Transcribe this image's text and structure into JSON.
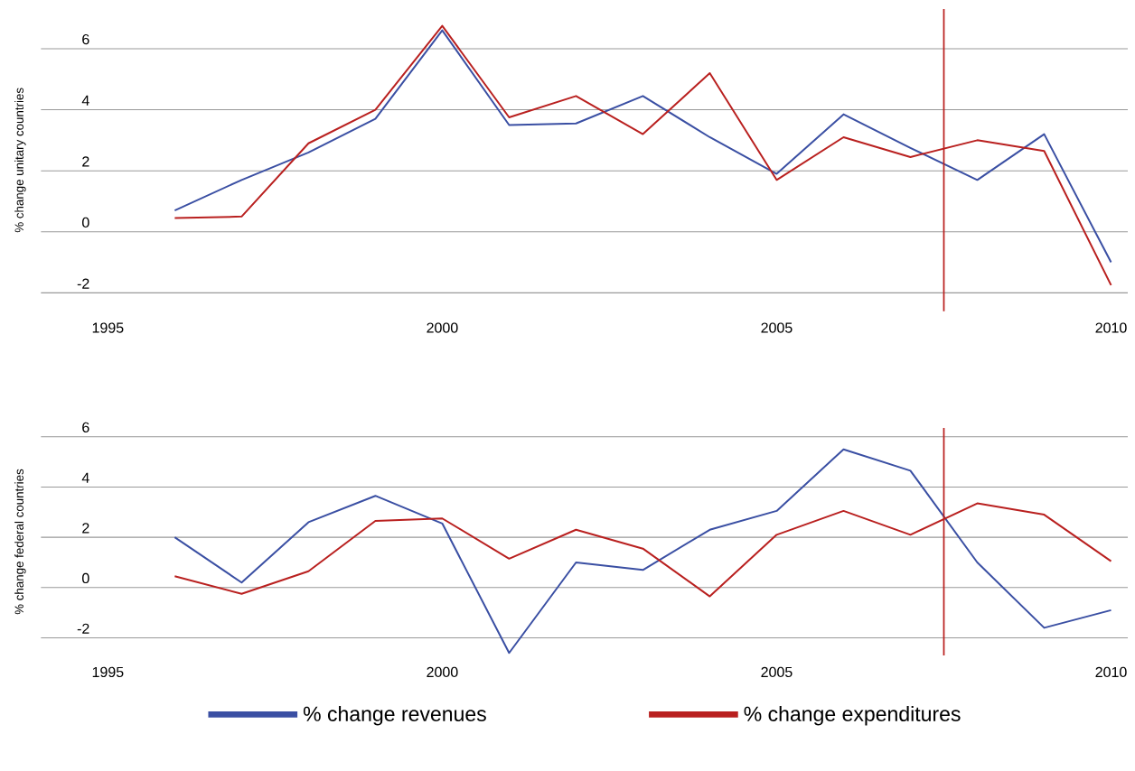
{
  "chart_data": [
    {
      "type": "line",
      "ylabel": "% change unitary countries",
      "x": [
        1996,
        1997,
        1998,
        1999,
        2000,
        2001,
        2002,
        2003,
        2004,
        2005,
        2006,
        2007,
        2008,
        2009,
        2010
      ],
      "series": [
        {
          "color": "#3a4fa3",
          "values": [
            0.7,
            1.7,
            2.6,
            3.7,
            6.6,
            3.5,
            3.55,
            4.45,
            3.1,
            1.9,
            3.85,
            2.75,
            1.7,
            3.2,
            -1.0
          ]
        },
        {
          "color": "#b9201f",
          "values": [
            0.45,
            0.5,
            2.9,
            4.0,
            6.75,
            3.75,
            4.45,
            3.2,
            5.2,
            1.7,
            3.1,
            2.45,
            3.0,
            2.65,
            -1.75
          ]
        }
      ],
      "xlim": [
        1994,
        2010.25
      ],
      "ylim": [
        -2.6,
        7.3
      ],
      "xticks": [
        1995,
        2000,
        2005,
        2010
      ],
      "yticks": [
        -2,
        0,
        2,
        4,
        6
      ],
      "grid": "y",
      "marker": "none",
      "line_style": "solid",
      "ref_lines": [
        {
          "axis": "x",
          "value": 2007.5,
          "color": "#b9201f"
        }
      ]
    },
    {
      "type": "line",
      "ylabel": "% change federal countries",
      "x": [
        1996,
        1997,
        1998,
        1999,
        2000,
        2001,
        2002,
        2003,
        2004,
        2005,
        2006,
        2007,
        2008,
        2009,
        2010
      ],
      "series": [
        {
          "name": "% change revenues",
          "color": "#3a4fa3",
          "values": [
            2.0,
            0.2,
            2.6,
            3.65,
            2.55,
            -2.6,
            1.0,
            0.7,
            2.3,
            3.05,
            5.5,
            4.65,
            1.0,
            -1.6,
            -0.9
          ]
        },
        {
          "name": "% change expenditures",
          "color": "#b9201f",
          "values": [
            0.45,
            -0.25,
            0.65,
            2.65,
            2.75,
            1.15,
            2.3,
            1.55,
            -0.35,
            2.1,
            3.05,
            2.1,
            3.35,
            2.9,
            1.05
          ]
        }
      ],
      "xlim": [
        1994,
        2010.25
      ],
      "ylim": [
        -2.7,
        6.35
      ],
      "xticks": [
        1995,
        2000,
        2005,
        2010
      ],
      "yticks": [
        -2,
        0,
        2,
        4,
        6
      ],
      "grid": "y",
      "marker": "none",
      "line_style": "solid",
      "legend": "bottom",
      "ref_lines": [
        {
          "axis": "x",
          "value": 2007.5,
          "color": "#b9201f"
        }
      ]
    }
  ]
}
